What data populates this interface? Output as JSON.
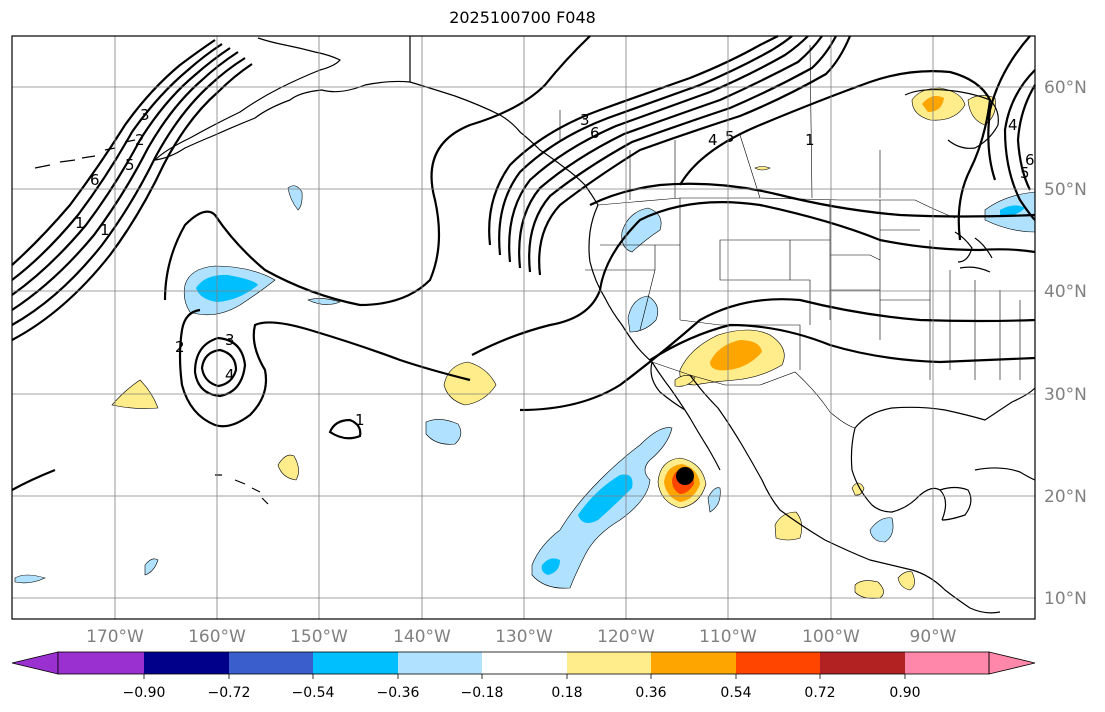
{
  "title": "2025100700 F048",
  "lat_labels": [
    "60°N",
    "50°N",
    "40°N",
    "30°N",
    "20°N",
    "10°N"
  ],
  "lon_labels": [
    "170°W",
    "160°W",
    "150°W",
    "140°W",
    "130°W",
    "120°W",
    "110°W",
    "100°W",
    "90°W"
  ],
  "contour_labels": [
    "1",
    "2",
    "3",
    "4",
    "5",
    "6",
    "1",
    "2",
    "3",
    "4",
    "5",
    "6",
    "1",
    "3",
    "4",
    "5",
    "6",
    "1"
  ],
  "colorbar": {
    "ticks": [
      "−0.90",
      "−0.72",
      "−0.54",
      "−0.36",
      "−0.18",
      "0.18",
      "0.36",
      "0.54",
      "0.72",
      "0.90"
    ],
    "colors": [
      "#9b30d0",
      "#00008b",
      "#3a5fcd",
      "#00bfff",
      "#b0e2ff",
      "#ffffff",
      "#ffec8b",
      "#ffa500",
      "#ff4500",
      "#b22222",
      "#ff88aa"
    ]
  },
  "colors": {
    "coast": "#000000",
    "grid": "#808080",
    "contour": "#000000",
    "light_blue": "#b0e2ff",
    "blue": "#00bfff",
    "yellow": "#ffec8b",
    "orange": "#ffa500",
    "red_orange": "#ff4500",
    "storm_center": "#000000"
  }
}
